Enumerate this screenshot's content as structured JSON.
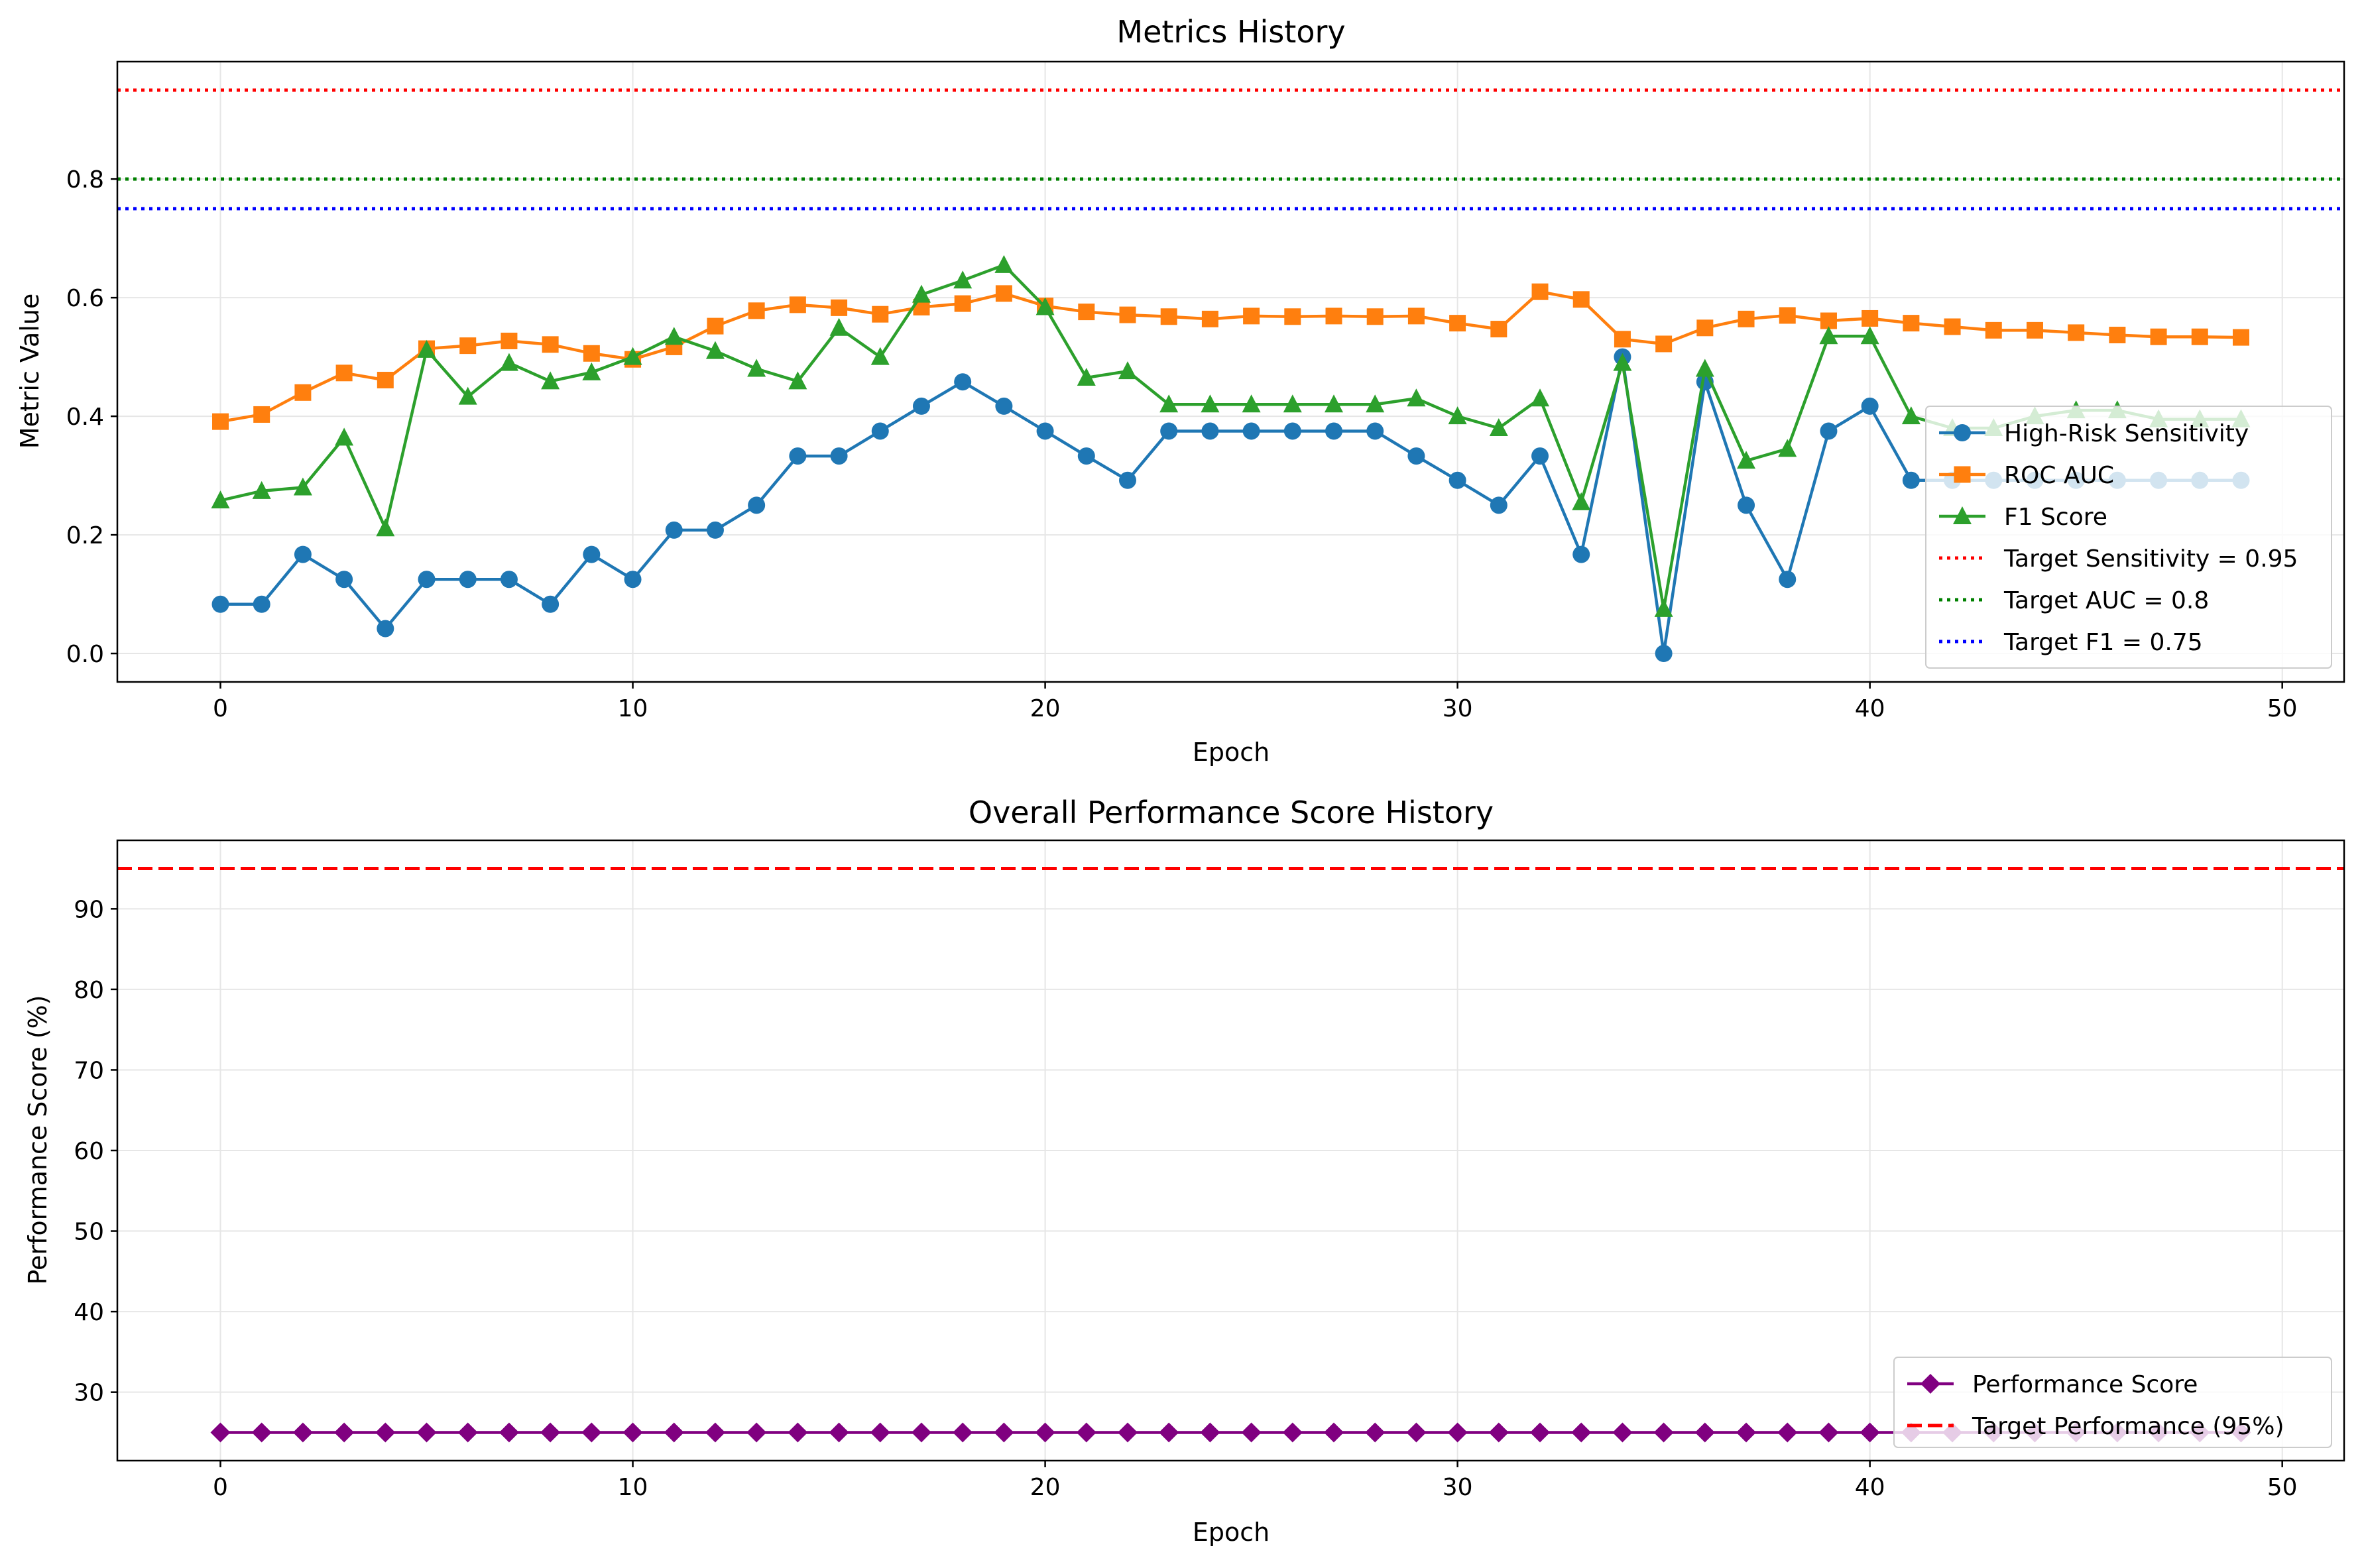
{
  "chart_data": [
    {
      "type": "line",
      "title": "Metrics History",
      "xlabel": "Epoch",
      "ylabel": "Metric Value",
      "xlim": [
        -2.5,
        51.5
      ],
      "ylim": [
        -0.048,
        0.998
      ],
      "xticks": [
        0,
        10,
        20,
        30,
        40,
        50
      ],
      "xtick_labels": [
        "0",
        "10",
        "20",
        "30",
        "40",
        "50"
      ],
      "yticks": [
        0.0,
        0.2,
        0.4,
        0.6,
        0.8
      ],
      "ytick_labels": [
        "0.0",
        "0.2",
        "0.4",
        "0.6",
        "0.8"
      ],
      "grid": true,
      "legend_position": "right",
      "x": [
        0,
        1,
        2,
        3,
        4,
        5,
        6,
        7,
        8,
        9,
        10,
        11,
        12,
        13,
        14,
        15,
        16,
        17,
        18,
        19,
        20,
        21,
        22,
        23,
        24,
        25,
        26,
        27,
        28,
        29,
        30,
        31,
        32,
        33,
        34,
        35,
        36,
        37,
        38,
        39,
        40,
        41,
        42,
        43,
        44,
        45,
        46,
        47,
        48,
        49
      ],
      "series": [
        {
          "name": "High-Risk Sensitivity",
          "color": "#1f77b4",
          "marker": "circle",
          "values": [
            0.083,
            0.083,
            0.167,
            0.125,
            0.042,
            0.125,
            0.125,
            0.125,
            0.083,
            0.167,
            0.125,
            0.208,
            0.208,
            0.25,
            0.333,
            0.333,
            0.375,
            0.417,
            0.458,
            0.417,
            0.375,
            0.333,
            0.292,
            0.375,
            0.375,
            0.375,
            0.375,
            0.375,
            0.375,
            0.333,
            0.292,
            0.25,
            0.333,
            0.167,
            0.5,
            0.0,
            0.458,
            0.25,
            0.125,
            0.375,
            0.417,
            0.292,
            0.292,
            0.292,
            0.292,
            0.292,
            0.292,
            0.292,
            0.292,
            0.292
          ]
        },
        {
          "name": "ROC AUC",
          "color": "#ff7f0e",
          "marker": "square",
          "values": [
            0.391,
            0.403,
            0.44,
            0.473,
            0.461,
            0.514,
            0.519,
            0.527,
            0.521,
            0.506,
            0.496,
            0.517,
            0.552,
            0.578,
            0.588,
            0.583,
            0.572,
            0.584,
            0.59,
            0.607,
            0.586,
            0.576,
            0.571,
            0.568,
            0.564,
            0.569,
            0.568,
            0.569,
            0.568,
            0.569,
            0.557,
            0.547,
            0.61,
            0.597,
            0.53,
            0.522,
            0.549,
            0.564,
            0.57,
            0.561,
            0.565,
            0.557,
            0.551,
            0.545,
            0.545,
            0.541,
            0.537,
            0.534,
            0.534,
            0.533
          ]
        },
        {
          "name": "F1 Score",
          "color": "#2ca02c",
          "marker": "triangle",
          "values": [
            0.258,
            0.274,
            0.28,
            0.364,
            0.211,
            0.512,
            0.433,
            0.49,
            0.459,
            0.474,
            0.5,
            0.534,
            0.51,
            0.48,
            0.459,
            0.549,
            0.5,
            0.605,
            0.629,
            0.655,
            0.584,
            0.465,
            0.476,
            0.42,
            0.42,
            0.42,
            0.42,
            0.42,
            0.42,
            0.43,
            0.4,
            0.38,
            0.43,
            0.255,
            0.49,
            0.075,
            0.48,
            0.325,
            0.345,
            0.535,
            0.535,
            0.4,
            0.38,
            0.38,
            0.4,
            0.41,
            0.41,
            0.395,
            0.395,
            0.395
          ]
        }
      ],
      "reference_lines": [
        {
          "name": "Target Sensitivity = 0.95",
          "y": 0.95,
          "color": "#ff0000",
          "style": "dotted"
        },
        {
          "name": "Target AUC = 0.8",
          "y": 0.8,
          "color": "#008000",
          "style": "dotted"
        },
        {
          "name": "Target F1 = 0.75",
          "y": 0.75,
          "color": "#0000ff",
          "style": "dotted"
        }
      ]
    },
    {
      "type": "line",
      "title": "Overall Performance Score History",
      "xlabel": "Epoch",
      "ylabel": "Performance Score (%)",
      "xlim": [
        -2.5,
        51.5
      ],
      "ylim": [
        21.5,
        98.5
      ],
      "xticks": [
        0,
        10,
        20,
        30,
        40,
        50
      ],
      "xtick_labels": [
        "0",
        "10",
        "20",
        "30",
        "40",
        "50"
      ],
      "yticks": [
        30,
        40,
        50,
        60,
        70,
        80,
        90
      ],
      "ytick_labels": [
        "30",
        "40",
        "50",
        "60",
        "70",
        "80",
        "90"
      ],
      "grid": true,
      "legend_position": "lower right",
      "x": [
        0,
        1,
        2,
        3,
        4,
        5,
        6,
        7,
        8,
        9,
        10,
        11,
        12,
        13,
        14,
        15,
        16,
        17,
        18,
        19,
        20,
        21,
        22,
        23,
        24,
        25,
        26,
        27,
        28,
        29,
        30,
        31,
        32,
        33,
        34,
        35,
        36,
        37,
        38,
        39,
        40,
        41,
        42,
        43,
        44,
        45,
        46,
        47,
        48,
        49
      ],
      "series": [
        {
          "name": "Performance Score",
          "color": "#800080",
          "marker": "diamond",
          "values": [
            25,
            25,
            25,
            25,
            25,
            25,
            25,
            25,
            25,
            25,
            25,
            25,
            25,
            25,
            25,
            25,
            25,
            25,
            25,
            25,
            25,
            25,
            25,
            25,
            25,
            25,
            25,
            25,
            25,
            25,
            25,
            25,
            25,
            25,
            25,
            25,
            25,
            25,
            25,
            25,
            25,
            25,
            25,
            25,
            25,
            25,
            25,
            25,
            25,
            25
          ]
        }
      ],
      "reference_lines": [
        {
          "name": "Target Performance (95%)",
          "y": 95,
          "color": "#ff0000",
          "style": "dashed"
        }
      ]
    }
  ]
}
